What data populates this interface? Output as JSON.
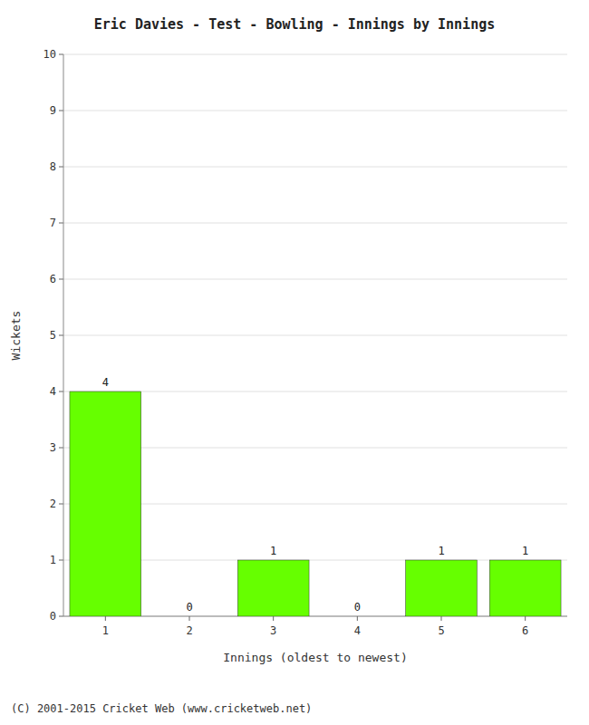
{
  "chart_data": {
    "type": "bar",
    "title": "Eric Davies - Test - Bowling - Innings by Innings",
    "xlabel": "Innings (oldest to newest)",
    "ylabel": "Wickets",
    "categories": [
      "1",
      "2",
      "3",
      "4",
      "5",
      "6"
    ],
    "values": [
      4,
      0,
      1,
      0,
      1,
      1
    ],
    "color": "#66ff00",
    "ylim": [
      0,
      10
    ],
    "yticks": [
      0,
      1,
      2,
      3,
      4,
      5,
      6,
      7,
      8,
      9,
      10
    ],
    "grid": true,
    "data_labels": true,
    "annotations": [
      "(C) 2001-2015 Cricket Web (www.cricketweb.net)"
    ]
  }
}
